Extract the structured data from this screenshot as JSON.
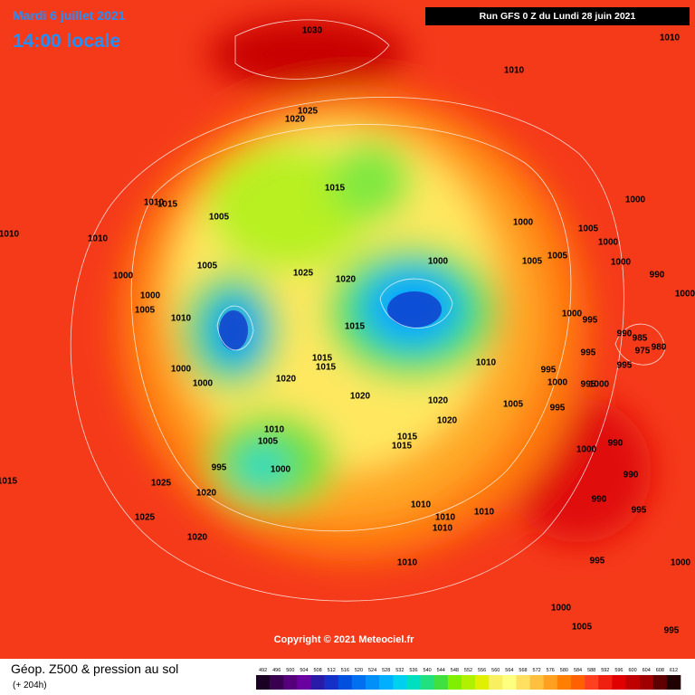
{
  "header": {
    "date": "Mardi 6 juillet 2021",
    "time": "14:00 locale",
    "run": "Run GFS 0 Z du Lundi 28 juin 2021"
  },
  "copyright": "Copyright © 2021 Meteociel.fr",
  "legend": {
    "title": "Géop. Z500 & pression au sol",
    "subtitle": "(+ 204h)",
    "scale_labels": [
      492,
      496,
      500,
      504,
      508,
      512,
      516,
      520,
      524,
      528,
      532,
      536,
      540,
      544,
      548,
      552,
      556,
      560,
      564,
      568,
      572,
      576,
      580,
      584,
      588,
      592,
      596,
      600,
      604,
      608,
      612
    ],
    "scale_colors": [
      "#1a0022",
      "#3a0050",
      "#55007a",
      "#6a00a0",
      "#2a1aa8",
      "#1530c8",
      "#0050e0",
      "#0070f0",
      "#0090f8",
      "#00b0ff",
      "#00d0f0",
      "#00e0c0",
      "#20e080",
      "#40e040",
      "#80f000",
      "#b0f000",
      "#e0f000",
      "#f8f060",
      "#ffff80",
      "#ffe060",
      "#ffc040",
      "#ffa020",
      "#ff8000",
      "#ff6000",
      "#ff4020",
      "#f02010",
      "#e00000",
      "#c00000",
      "#a00000",
      "#600000",
      "#200000"
    ]
  },
  "isobar_labels": [
    1030,
    1010,
    1010,
    1025,
    1020,
    1015,
    1010,
    1015,
    1005,
    1000,
    1000,
    1005,
    1000,
    1010,
    1010,
    1005,
    1005,
    1000,
    990,
    1000,
    1005,
    1025,
    1020,
    1000,
    1000,
    1000,
    1005,
    1010,
    1015,
    1000,
    995,
    990,
    985,
    975,
    980,
    995,
    995,
    1000,
    1015,
    1015,
    1020,
    1010,
    995,
    1000,
    995,
    1000,
    1000,
    1020,
    1020,
    1005,
    995,
    1020,
    1010,
    1005,
    1015,
    1015,
    990,
    1000,
    995,
    1000,
    990,
    1015,
    1025,
    1020,
    1010,
    1010,
    1010,
    1010,
    990,
    995,
    1025,
    1020,
    1010,
    995,
    1000,
    1000,
    1005,
    995
  ]
}
